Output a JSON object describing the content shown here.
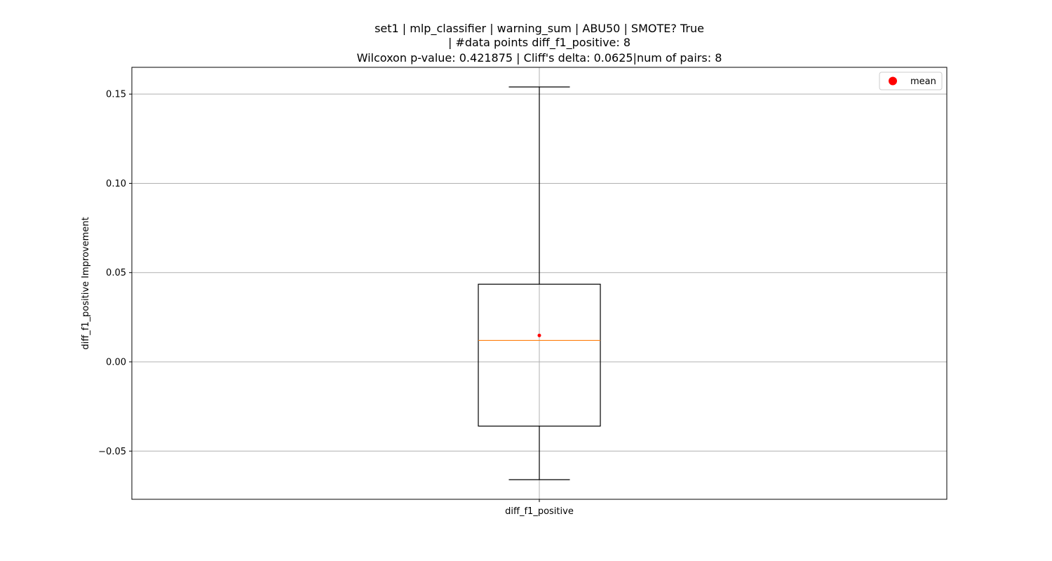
{
  "chart_data": {
    "type": "box",
    "title_lines": [
      "set1 | mlp_classifier | warning_sum | ABU50 | SMOTE? True",
      "| #data points diff_f1_positive: 8",
      "Wilcoxon p-value: 0.421875 | Cliff's delta: 0.0625|num of pairs: 8"
    ],
    "xlabel": "",
    "ylabel": "diff_f1_positive Improvement",
    "categories": [
      "diff_f1_positive"
    ],
    "ylim": [
      -0.077,
      0.165
    ],
    "yticks": [
      -0.05,
      0.0,
      0.05,
      0.1,
      0.15
    ],
    "ytick_labels": [
      "−0.05",
      "0.00",
      "0.05",
      "0.10",
      "0.15"
    ],
    "grid": true,
    "legend": {
      "placement": "top-right",
      "entries": [
        {
          "label": "mean",
          "color": "#ff0000",
          "marker": "circle"
        }
      ]
    },
    "boxes": [
      {
        "name": "diff_f1_positive",
        "whisker_low": -0.066,
        "q1": -0.036,
        "median": 0.012,
        "q3": 0.0435,
        "whisker_high": 0.154,
        "mean": 0.0148
      }
    ],
    "colors": {
      "box": "#000000",
      "median": "#ff7f0e",
      "mean": "#ff0000",
      "grid": "#b0b0b0"
    }
  }
}
